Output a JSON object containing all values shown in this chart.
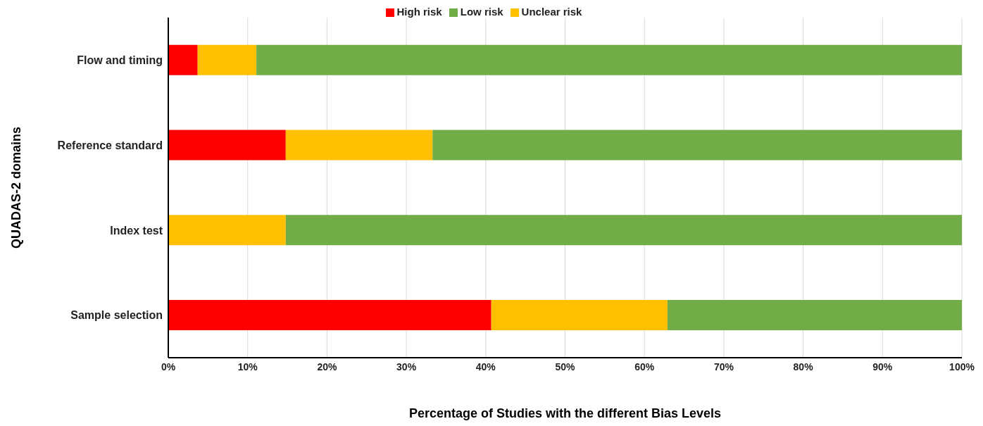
{
  "chart_data": {
    "type": "bar",
    "orientation": "horizontal",
    "stacked": true,
    "xlabel": "Percentage of Studies with the different Bias Levels",
    "ylabel": "QUADAS-2 domains",
    "categories": [
      "Flow and timing",
      "Reference standard",
      "Index test",
      "Sample selection"
    ],
    "series": [
      {
        "name": "High risk",
        "color": "#ff0000",
        "values": [
          3.7,
          14.8,
          0,
          40.7
        ]
      },
      {
        "name": "Unclear risk",
        "color": "#ffc000",
        "values": [
          7.4,
          18.5,
          14.8,
          22.2
        ]
      },
      {
        "name": "Low risk",
        "color": "#70ad47",
        "values": [
          88.9,
          66.7,
          85.2,
          37.1
        ]
      }
    ],
    "xlim": [
      0,
      100
    ],
    "xticks": [
      {
        "value": 0,
        "label": "0%"
      },
      {
        "value": 10,
        "label": "10%"
      },
      {
        "value": 20,
        "label": "20%"
      },
      {
        "value": 30,
        "label": "30%"
      },
      {
        "value": 40,
        "label": "40%"
      },
      {
        "value": 50,
        "label": "50%"
      },
      {
        "value": 60,
        "label": "60%"
      },
      {
        "value": 70,
        "label": "70%"
      },
      {
        "value": 80,
        "label": "80%"
      },
      {
        "value": 90,
        "label": "90%"
      },
      {
        "value": 100,
        "label": "100%"
      }
    ],
    "grid": "x",
    "legend": "top"
  }
}
